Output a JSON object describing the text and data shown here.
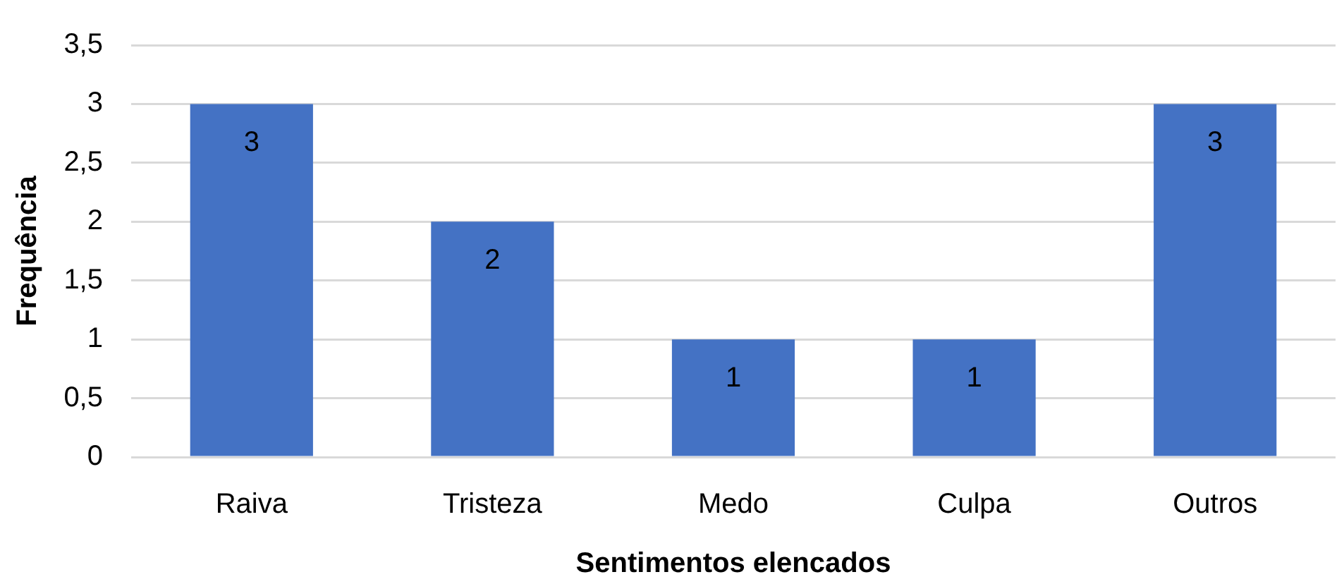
{
  "chart_data": {
    "type": "bar",
    "xlabel": "Sentimentos elencados",
    "ylabel": "Frequência",
    "categories": [
      "Raiva",
      "Tristeza",
      "Medo",
      "Culpa",
      "Outros"
    ],
    "values": [
      3,
      2,
      1,
      1,
      3
    ],
    "color": "#4472c4",
    "ylim": [
      0,
      3.5
    ],
    "yticks": [
      0,
      {
        "value": 0.5,
        "label": "0,5"
      },
      1,
      {
        "value": 1.5,
        "label": "1,5"
      },
      2,
      {
        "value": 2.5,
        "label": "2,5"
      },
      3,
      {
        "value": 3.5,
        "label": "3,5"
      }
    ],
    "grid": "y",
    "data_labels": true
  }
}
